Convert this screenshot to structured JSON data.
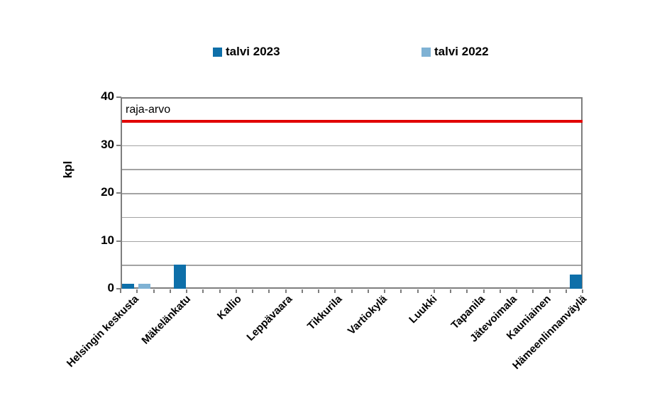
{
  "chart_data": {
    "type": "bar",
    "title": "",
    "ylabel": "kpl",
    "xlabel": "",
    "ylim": [
      0,
      40
    ],
    "ytick_interval": 10,
    "gridline_interval": 5,
    "grid": true,
    "legend_position": "top",
    "categories": [
      "Helsingin keskusta",
      "Mäkelänkatu",
      "Kallio",
      "Leppävaara",
      "Tikkurila",
      "Vartiokylä",
      "Luukki",
      "Tapanila",
      "Jätevoimala",
      "Kauniainen",
      "Hämeenlinnanväylä"
    ],
    "yticks": [
      0,
      10,
      20,
      30,
      40
    ],
    "series": [
      {
        "name": "talvi 2023",
        "color": "#0e6fa9",
        "values": [
          1,
          5,
          0,
          0,
          0,
          0,
          0,
          0,
          0,
          0,
          3
        ]
      },
      {
        "name": "talvi 2022",
        "color": "#7fb2d4",
        "values": [
          1,
          0,
          0,
          0,
          0,
          0,
          0,
          0,
          0,
          0,
          0
        ]
      }
    ],
    "limit_line": {
      "label": "raja-arvo",
      "value": 35,
      "color": "#e10000"
    },
    "colors": {
      "axis": "#7e7e7e",
      "gridline": "#a3a3a3",
      "text": "#000000",
      "background": "#ffffff"
    }
  }
}
